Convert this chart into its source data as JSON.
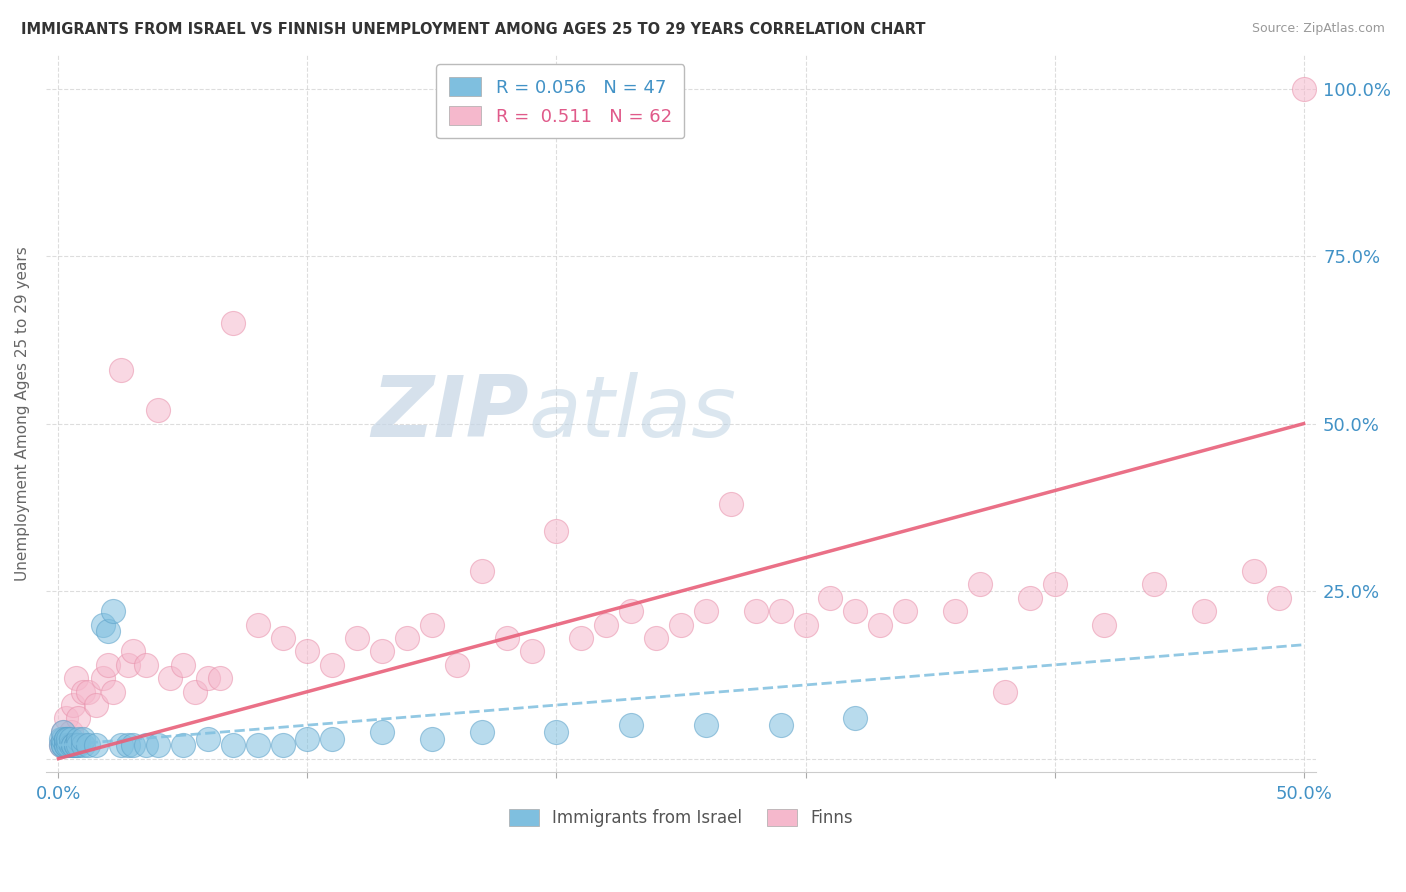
{
  "title": "IMMIGRANTS FROM ISRAEL VS FINNISH UNEMPLOYMENT AMONG AGES 25 TO 29 YEARS CORRELATION CHART",
  "source": "Source: ZipAtlas.com",
  "legend_label1": "Immigrants from Israel",
  "legend_label2": "Finns",
  "r1": "0.056",
  "n1": "47",
  "r2": "0.511",
  "n2": "62",
  "color_blue": "#7fbfdf",
  "color_blue_edge": "#5aa0c8",
  "color_pink": "#f5b8cc",
  "color_pink_edge": "#e890aa",
  "color_blue_text": "#4292c6",
  "color_pink_text": "#e05a8a",
  "color_line_blue": "#7fbfdf",
  "color_line_pink": "#e8607a",
  "watermark_zip": "#c8d8e8",
  "watermark_atlas": "#c8d8e8",
  "israel_x": [
    0.001,
    0.001,
    0.002,
    0.002,
    0.002,
    0.002,
    0.003,
    0.003,
    0.003,
    0.003,
    0.004,
    0.004,
    0.005,
    0.005,
    0.006,
    0.006,
    0.007,
    0.007,
    0.008,
    0.008,
    0.01,
    0.01,
    0.012,
    0.015,
    0.018,
    0.02,
    0.022,
    0.025,
    0.028,
    0.03,
    0.035,
    0.04,
    0.05,
    0.06,
    0.07,
    0.08,
    0.09,
    0.1,
    0.11,
    0.13,
    0.15,
    0.17,
    0.2,
    0.23,
    0.26,
    0.29,
    0.32
  ],
  "israel_y": [
    0.03,
    0.02,
    0.02,
    0.02,
    0.03,
    0.04,
    0.02,
    0.03,
    0.02,
    0.03,
    0.02,
    0.03,
    0.02,
    0.03,
    0.02,
    0.02,
    0.02,
    0.02,
    0.03,
    0.02,
    0.02,
    0.03,
    0.02,
    0.02,
    0.2,
    0.19,
    0.22,
    0.02,
    0.02,
    0.02,
    0.02,
    0.02,
    0.02,
    0.03,
    0.02,
    0.02,
    0.02,
    0.03,
    0.03,
    0.04,
    0.03,
    0.04,
    0.04,
    0.05,
    0.05,
    0.05,
    0.06
  ],
  "finns_x": [
    0.001,
    0.002,
    0.003,
    0.005,
    0.006,
    0.007,
    0.008,
    0.01,
    0.012,
    0.015,
    0.018,
    0.02,
    0.022,
    0.025,
    0.028,
    0.03,
    0.035,
    0.04,
    0.045,
    0.05,
    0.055,
    0.06,
    0.065,
    0.07,
    0.08,
    0.09,
    0.1,
    0.11,
    0.12,
    0.13,
    0.14,
    0.15,
    0.16,
    0.17,
    0.18,
    0.19,
    0.2,
    0.21,
    0.22,
    0.23,
    0.24,
    0.25,
    0.26,
    0.27,
    0.28,
    0.29,
    0.3,
    0.31,
    0.32,
    0.33,
    0.34,
    0.36,
    0.37,
    0.38,
    0.39,
    0.4,
    0.42,
    0.44,
    0.46,
    0.48,
    0.49,
    0.5
  ],
  "finns_y": [
    0.02,
    0.04,
    0.06,
    0.04,
    0.08,
    0.12,
    0.06,
    0.1,
    0.1,
    0.08,
    0.12,
    0.14,
    0.1,
    0.58,
    0.14,
    0.16,
    0.14,
    0.52,
    0.12,
    0.14,
    0.1,
    0.12,
    0.12,
    0.65,
    0.2,
    0.18,
    0.16,
    0.14,
    0.18,
    0.16,
    0.18,
    0.2,
    0.14,
    0.28,
    0.18,
    0.16,
    0.34,
    0.18,
    0.2,
    0.22,
    0.18,
    0.2,
    0.22,
    0.38,
    0.22,
    0.22,
    0.2,
    0.24,
    0.22,
    0.2,
    0.22,
    0.22,
    0.26,
    0.1,
    0.24,
    0.26,
    0.2,
    0.26,
    0.22,
    0.28,
    0.24,
    1.0
  ],
  "israel_trendline_x": [
    0.0,
    0.5
  ],
  "israel_trendline_y": [
    0.02,
    0.17
  ],
  "finns_trendline_x": [
    0.0,
    0.5
  ],
  "finns_trendline_y": [
    0.0,
    0.5
  ],
  "xlim": [
    -0.005,
    0.505
  ],
  "ylim": [
    -0.02,
    1.05
  ],
  "x_ticks": [
    0.0,
    0.1,
    0.2,
    0.3,
    0.4,
    0.5
  ],
  "y_ticks": [
    0.0,
    0.25,
    0.5,
    0.75,
    1.0
  ],
  "x_tick_labels": [
    "0.0%",
    "",
    "",
    "",
    "",
    "50.0%"
  ],
  "y_tick_labels_right": [
    "",
    "25.0%",
    "50.0%",
    "75.0%",
    "100.0%"
  ]
}
